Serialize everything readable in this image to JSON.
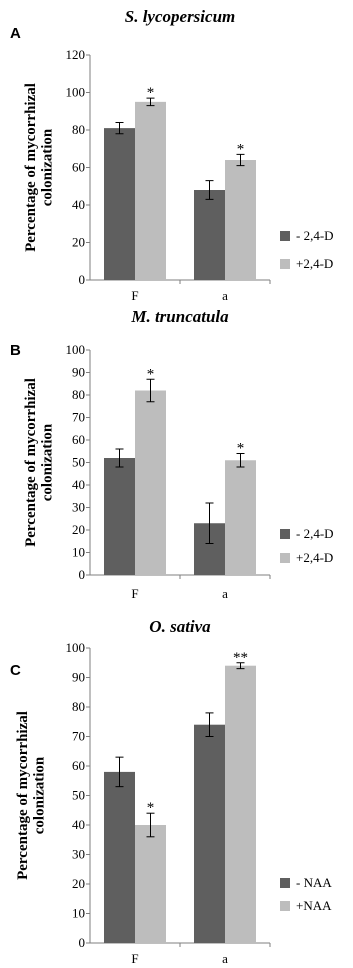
{
  "chart_data": [
    {
      "type": "bar",
      "panel": "A",
      "title": "S. lycopersicum",
      "ylabel": "Percentage of mycorrhizal colonization",
      "xlabel": "",
      "categories": [
        "F",
        "a"
      ],
      "ylim": [
        0,
        120
      ],
      "yticks": [
        0,
        20,
        40,
        60,
        80,
        100,
        120
      ],
      "series": [
        {
          "name": "- 2,4-D",
          "color": "#5f5f5f",
          "values": [
            81,
            48
          ],
          "errors": [
            3,
            5
          ],
          "stars": [
            "",
            ""
          ]
        },
        {
          "name": "+2,4-D",
          "color": "#bdbdbd",
          "values": [
            95,
            64
          ],
          "errors": [
            2,
            3
          ],
          "stars": [
            "*",
            "*"
          ]
        }
      ],
      "legend": "right"
    },
    {
      "type": "bar",
      "panel": "B",
      "title": "M. truncatula",
      "ylabel": "Percentage of mycorrhizal colonization",
      "xlabel": "",
      "categories": [
        "F",
        "a"
      ],
      "ylim": [
        0,
        100
      ],
      "yticks": [
        0,
        10,
        20,
        30,
        40,
        50,
        60,
        70,
        80,
        90,
        100
      ],
      "series": [
        {
          "name": "- 2,4-D",
          "color": "#5f5f5f",
          "values": [
            52,
            23
          ],
          "errors": [
            4,
            9
          ],
          "stars": [
            "",
            ""
          ]
        },
        {
          "name": "+2,4-D",
          "color": "#bdbdbd",
          "values": [
            82,
            51
          ],
          "errors": [
            5,
            3
          ],
          "stars": [
            "*",
            "*"
          ]
        }
      ],
      "legend": "right"
    },
    {
      "type": "bar",
      "panel": "C",
      "title": "O. sativa",
      "ylabel": "Percentage of mycorrhizal colonization",
      "xlabel": "",
      "categories": [
        "F",
        "a"
      ],
      "ylim": [
        0,
        100
      ],
      "yticks": [
        0,
        10,
        20,
        30,
        40,
        50,
        60,
        70,
        80,
        90,
        100
      ],
      "series": [
        {
          "name": "- NAA",
          "color": "#5f5f5f",
          "values": [
            58,
            74
          ],
          "errors": [
            5,
            4
          ],
          "stars": [
            "",
            ""
          ]
        },
        {
          "name": "+NAA",
          "color": "#bdbdbd",
          "values": [
            40,
            94
          ],
          "errors": [
            4,
            1
          ],
          "stars": [
            "*",
            "**"
          ]
        }
      ],
      "legend": "right"
    }
  ]
}
